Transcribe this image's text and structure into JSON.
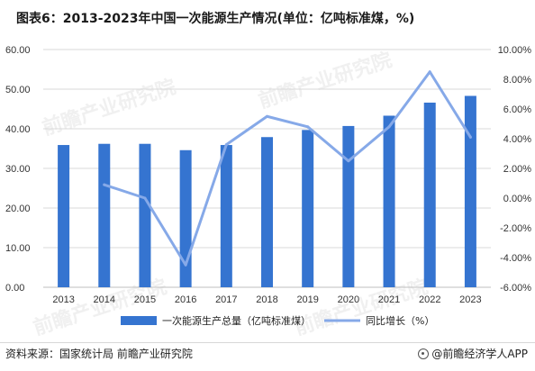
{
  "title": "图表6：2013-2023年中国一次能源生产情况(单位：亿吨标准煤，%)",
  "source": "资料来源：国家统计局 前瞻产业研究院",
  "brand": "@前瞻经济学人APP",
  "watermark": "前瞻产业研究院",
  "colors": {
    "bar": "#3574d0",
    "line": "#86a9e8",
    "grid": "#d9d9d9",
    "axis": "#bfbfbf"
  },
  "chart_data": {
    "type": "bar",
    "categories": [
      "2013",
      "2014",
      "2015",
      "2016",
      "2017",
      "2018",
      "2019",
      "2020",
      "2021",
      "2022",
      "2023"
    ],
    "series": [
      {
        "name": "一次能源生产总量（亿吨标准煤）",
        "type": "bar",
        "axis": "left",
        "values": [
          35.9,
          36.2,
          36.2,
          34.6,
          35.9,
          37.9,
          39.7,
          40.7,
          43.3,
          46.6,
          48.3
        ]
      },
      {
        "name": "同比增长（%）",
        "type": "line",
        "axis": "right",
        "values": [
          null,
          0.9,
          0.0,
          -4.5,
          3.6,
          5.5,
          4.8,
          2.5,
          4.8,
          8.5,
          4.1
        ]
      }
    ],
    "y_left": {
      "min": 0,
      "max": 60,
      "step": 10,
      "ticks": [
        "0.00",
        "10.00",
        "20.00",
        "30.00",
        "40.00",
        "50.00",
        "60.00"
      ]
    },
    "y_right": {
      "min": -6,
      "max": 10,
      "step": 2,
      "ticks": [
        "-6.00%",
        "-4.00%",
        "-2.00%",
        "0.00%",
        "2.00%",
        "4.00%",
        "6.00%",
        "8.00%",
        "10.00%"
      ]
    },
    "grid": true,
    "legend_position": "bottom"
  }
}
